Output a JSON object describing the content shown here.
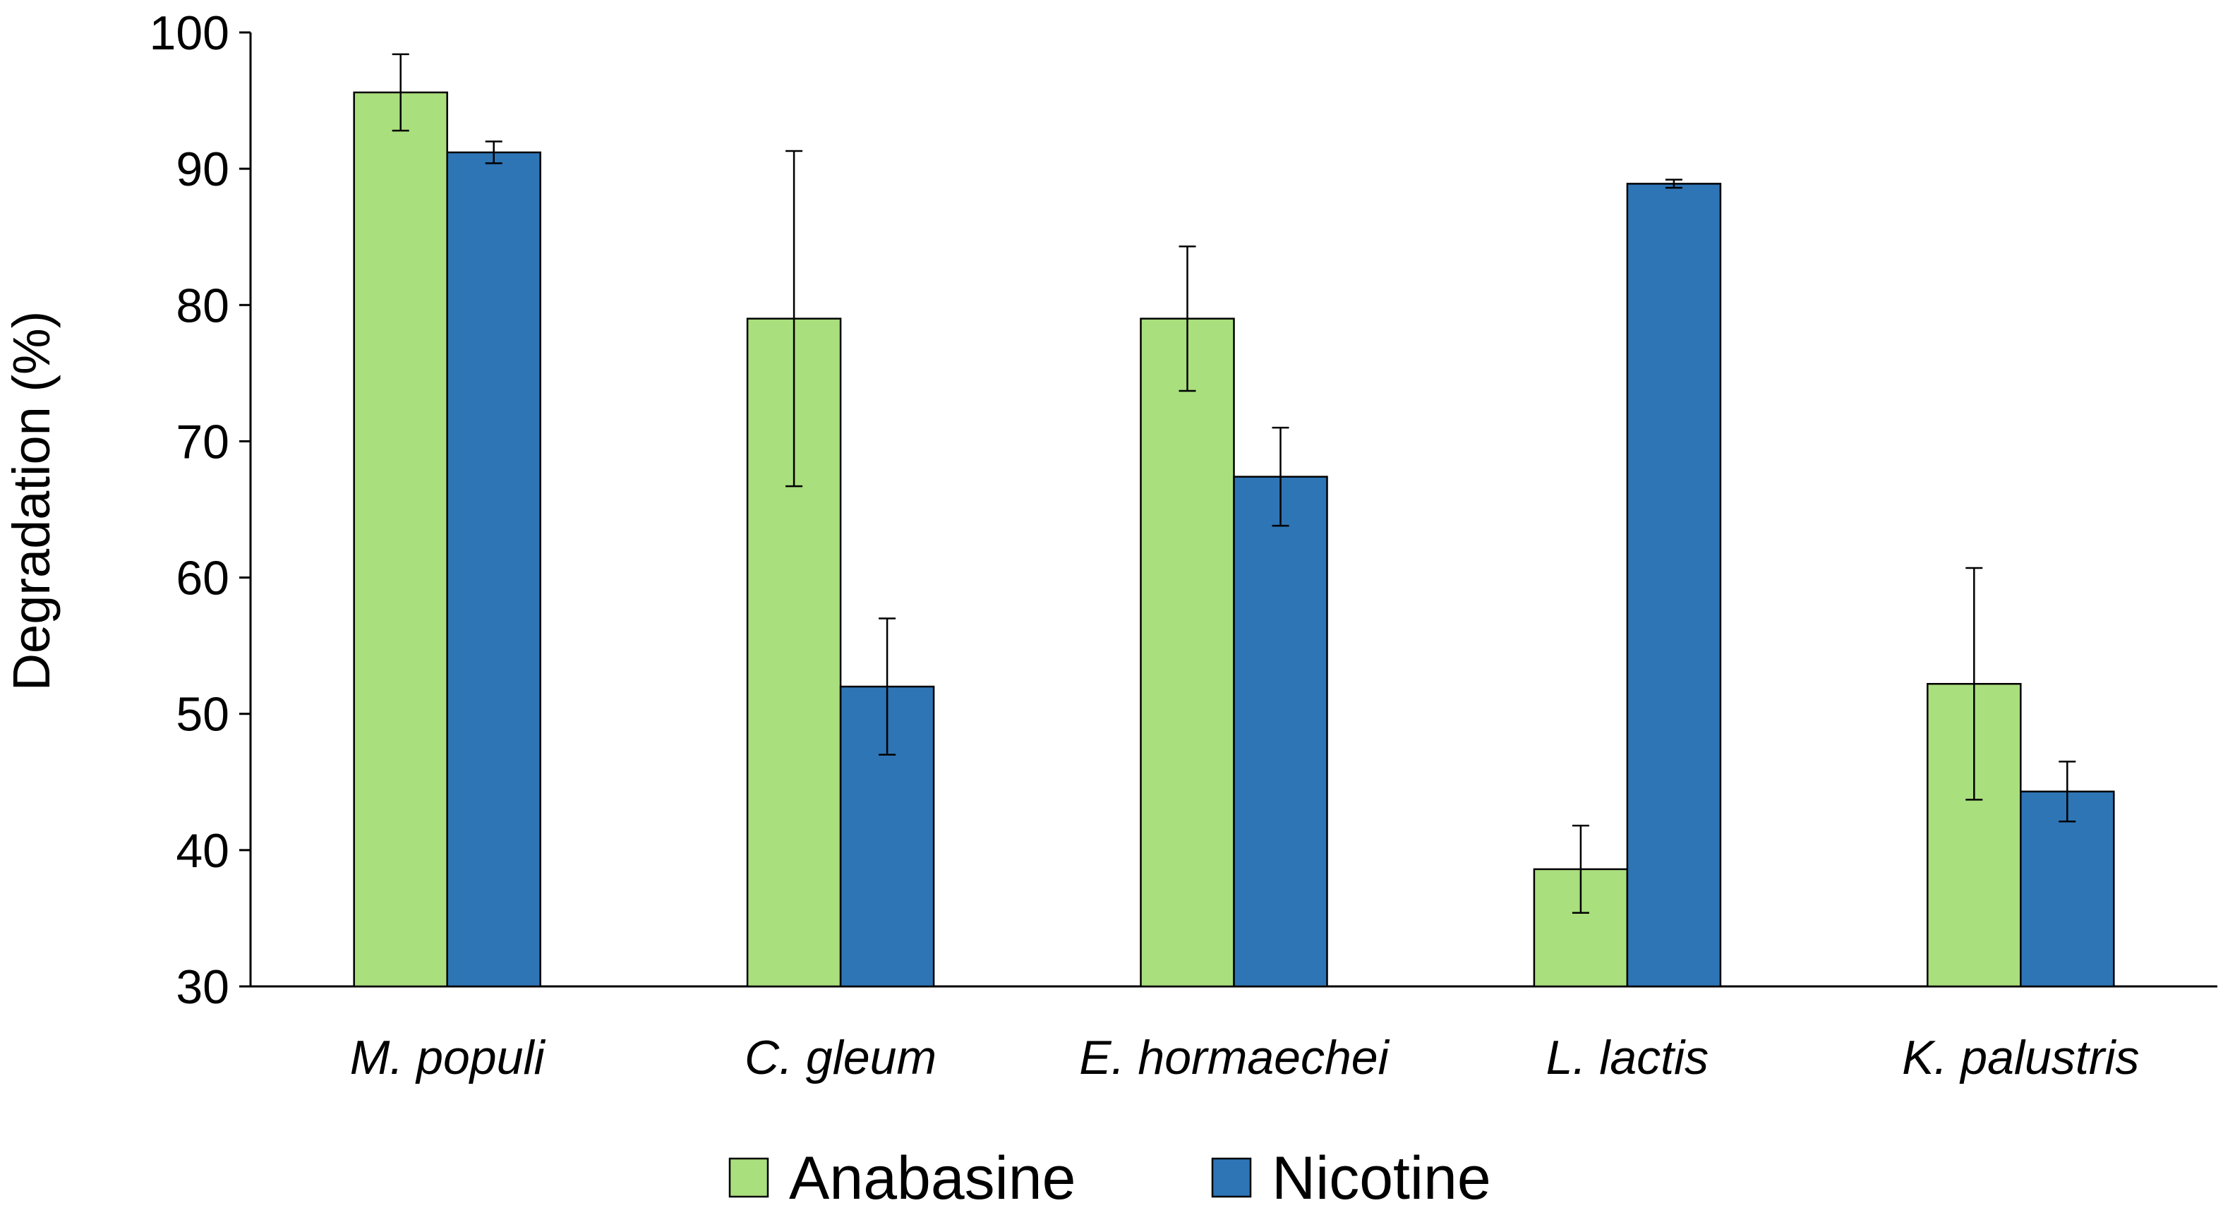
{
  "chart_data": {
    "type": "bar",
    "title": "",
    "xlabel": "",
    "ylabel": "Degradation (%)",
    "ylim": [
      30,
      100
    ],
    "yticks": [
      "30",
      "40",
      "50",
      "60",
      "70",
      "80",
      "90",
      "100"
    ],
    "categories": [
      "M. populi",
      "C. gleum",
      "E. hormaechei",
      "L. lactis",
      "K. palustris"
    ],
    "series": [
      {
        "name": "Anabasine",
        "color": "#a9df7d",
        "values": [
          95.6,
          79.0,
          79.0,
          38.6,
          52.2
        ],
        "errors": [
          2.8,
          12.3,
          5.3,
          3.2,
          8.5
        ]
      },
      {
        "name": "Nicotine",
        "color": "#2e75b6",
        "values": [
          91.2,
          52.0,
          67.4,
          88.9,
          44.3
        ],
        "errors": [
          0.8,
          5.0,
          3.6,
          0.3,
          2.2
        ]
      }
    ],
    "legend": "bottom-center",
    "grid": false
  }
}
